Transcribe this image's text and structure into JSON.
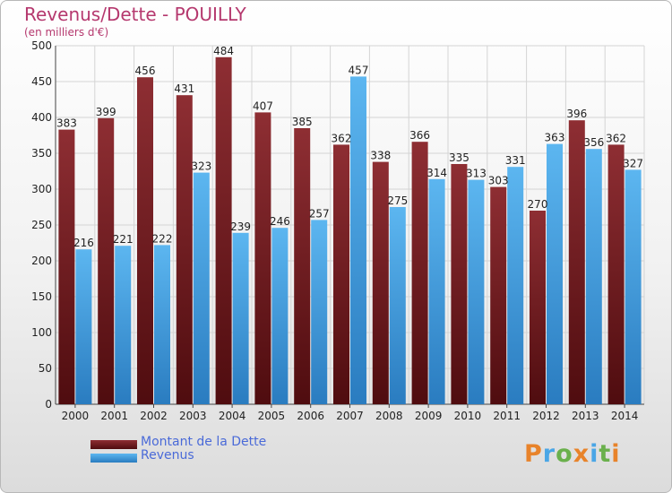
{
  "header": {
    "title": "Revenus/Dette - POUILLY",
    "subtitle": "(en milliers d'€)"
  },
  "legend": [
    {
      "label": "Montant de la Dette",
      "color": "#7a1e22"
    },
    {
      "label": "Revenus",
      "color": "#4aa6e6"
    }
  ],
  "logo": {
    "text": "Proxiti",
    "colors": [
      "#e8832a",
      "#4aa6e6",
      "#6ab04c",
      "#e8832a",
      "#4aa6e6",
      "#6ab04c",
      "#e8832a"
    ]
  },
  "chart_data": {
    "type": "bar",
    "title": "Revenus/Dette - POUILLY",
    "subtitle": "(en milliers d'€)",
    "categories": [
      "2000",
      "2001",
      "2002",
      "2003",
      "2004",
      "2005",
      "2006",
      "2007",
      "2008",
      "2009",
      "2010",
      "2011",
      "2012",
      "2013",
      "2014"
    ],
    "series": [
      {
        "name": "Montant de la Dette",
        "color": "#7a1e22",
        "values": [
          383,
          399,
          456,
          431,
          484,
          407,
          385,
          362,
          338,
          366,
          335,
          303,
          270,
          396,
          362
        ]
      },
      {
        "name": "Revenus",
        "color": "#4aa6e6",
        "values": [
          216,
          221,
          222,
          323,
          239,
          246,
          257,
          457,
          275,
          314,
          313,
          331,
          363,
          356,
          327
        ]
      }
    ],
    "ylim": [
      0,
      500
    ],
    "yticks": [
      0,
      50,
      100,
      150,
      200,
      250,
      300,
      350,
      400,
      450,
      500
    ],
    "grid": true,
    "legend_position": "bottom-left"
  }
}
